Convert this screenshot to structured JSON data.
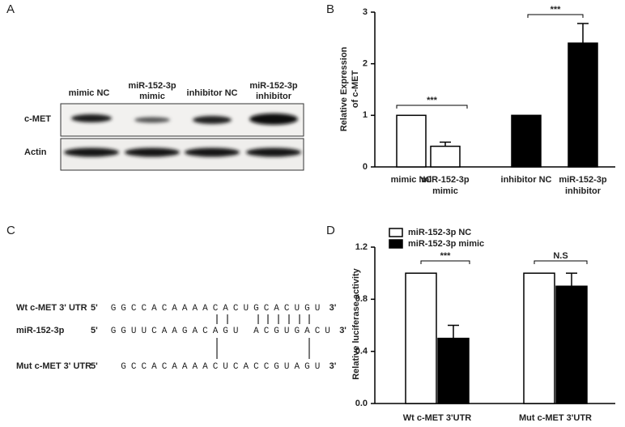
{
  "panels": [
    "A",
    "B",
    "C",
    "D"
  ],
  "blot": {
    "lanes": [
      [
        "mimic NC"
      ],
      [
        "miR-152-3p",
        "mimic"
      ],
      [
        "inhibitor NC"
      ],
      [
        "miR-152-3p",
        "inhibitor"
      ]
    ],
    "rows": [
      "c-MET",
      "Actin"
    ]
  },
  "sequences": {
    "rows": [
      {
        "label": "Wt c-MET 3' UTR",
        "five": "5'",
        "three": "3'",
        "segments": [
          {
            "text": "GGCCACAAAA",
            "color": "#222222"
          },
          {
            "text": "CACUGCACUG",
            "color": "#e0302a"
          },
          {
            "text": "U",
            "color": "#222222"
          }
        ]
      },
      {
        "label": "miR-152-3p",
        "five": "5'",
        "three": "3'",
        "segments": [
          {
            "text": "GGUUCAAGACA",
            "color": "#222222"
          },
          {
            "text": "GU ACGUGAC",
            "color": "#e0302a"
          },
          {
            "text": "U",
            "color": "#222222"
          }
        ]
      },
      {
        "label": "Mut c-MET 3' UTR",
        "five": "5'",
        "three": "3'",
        "segments": [
          {
            "text": " GCCACAAAAC",
            "color": "#222222"
          },
          {
            "text": "U",
            "color": "#e0302a"
          },
          {
            "text": "C",
            "color": "#222222"
          },
          {
            "text": "ACC",
            "color": "#e0302a"
          },
          {
            "text": "G",
            "color": "#222222"
          },
          {
            "text": "UA",
            "color": "#e0302a"
          },
          {
            "text": "GU",
            "color": "#222222"
          }
        ]
      }
    ]
  },
  "chart_data": [
    {
      "type": "bar",
      "y_label": [
        "Relative Expression",
        "of c-MET"
      ],
      "categories": [
        [
          "mimic NC"
        ],
        [
          "miR-152-3p",
          "mimic"
        ],
        [
          "inhibitor NC"
        ],
        [
          "miR-152-3p",
          "inhibitor"
        ]
      ],
      "values": [
        1,
        0.4,
        1,
        2.4
      ],
      "errors": [
        null,
        0.08,
        null,
        0.38
      ],
      "colors": [
        "#ffffff",
        "#ffffff",
        "#000000",
        "#000000"
      ],
      "ylim": [
        0,
        3
      ],
      "yticks": [
        0,
        1,
        2,
        3
      ],
      "annotations": [
        "***",
        "***"
      ]
    },
    {
      "type": "grouped_bar",
      "y_label": [
        "Relative luciferase activity"
      ],
      "categories": [
        "Wt c-MET 3'UTR",
        "Mut c-MET 3'UTR"
      ],
      "series": [
        {
          "name": "miR-152-3p NC",
          "color": "#ffffff",
          "values": [
            1,
            1
          ],
          "errors": [
            null,
            null
          ]
        },
        {
          "name": "miR-152-3p mimic",
          "color": "#000000",
          "values": [
            0.5,
            0.9
          ],
          "errors": [
            0.1,
            0.1
          ]
        }
      ],
      "ylim": [
        0,
        1.2
      ],
      "yticks": [
        {
          "value": 0,
          "label": "0.0"
        },
        0.4,
        0.8,
        1.2
      ],
      "legend": "top-left",
      "annotations": [
        "***",
        "N.S"
      ]
    }
  ]
}
